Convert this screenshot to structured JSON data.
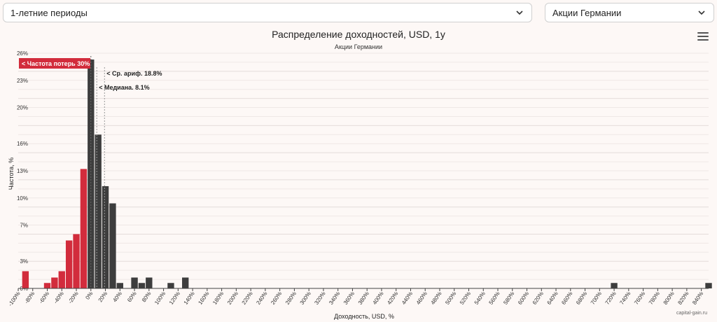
{
  "controls": {
    "period_select": "1-летние периоды",
    "market_select": "Акции Германии"
  },
  "credit": "capital-gain.ru",
  "icons": {
    "menu": "hamburger-menu-icon",
    "chevron": "chevron-down-icon"
  },
  "colors": {
    "loss": "#d22c3c",
    "gain": "#3d3d3d",
    "marker": "#999999"
  },
  "chart_data": {
    "type": "bar",
    "title": "Распределение доходностей, USD, 1y",
    "subtitle": "Акции Германии",
    "xlabel": "Доходность, USD, %",
    "ylabel": "Частота, %",
    "xlim": [
      -100,
      850
    ],
    "ylim": [
      0,
      26
    ],
    "bin_width": 10,
    "y_ticks": [
      "0%",
      "3%",
      "7%",
      "10%",
      "13%",
      "16%",
      "20%",
      "23%",
      "26%"
    ],
    "x_ticks": [
      "-100%",
      "-80%",
      "-60%",
      "-40%",
      "-20%",
      "0%",
      "20%",
      "40%",
      "60%",
      "80%",
      "100%",
      "120%",
      "140%",
      "160%",
      "180%",
      "200%",
      "220%",
      "240%",
      "260%",
      "280%",
      "300%",
      "320%",
      "340%",
      "360%",
      "380%",
      "400%",
      "420%",
      "440%",
      "460%",
      "480%",
      "500%",
      "520%",
      "540%",
      "560%",
      "580%",
      "600%",
      "620%",
      "640%",
      "660%",
      "680%",
      "700%",
      "720%",
      "740%",
      "760%",
      "780%",
      "800%",
      "820%",
      "840%"
    ],
    "bins": [
      {
        "x": -90,
        "y": 1.9,
        "loss": true
      },
      {
        "x": -60,
        "y": 0.6,
        "loss": true
      },
      {
        "x": -50,
        "y": 1.2,
        "loss": true
      },
      {
        "x": -40,
        "y": 1.9,
        "loss": true
      },
      {
        "x": -30,
        "y": 5.3,
        "loss": true
      },
      {
        "x": -20,
        "y": 6.0,
        "loss": true
      },
      {
        "x": -10,
        "y": 13.2,
        "loss": true
      },
      {
        "x": 0,
        "y": 25.3,
        "loss": false
      },
      {
        "x": 10,
        "y": 17.0,
        "loss": false
      },
      {
        "x": 20,
        "y": 11.3,
        "loss": false
      },
      {
        "x": 30,
        "y": 9.4,
        "loss": false
      },
      {
        "x": 40,
        "y": 0.6,
        "loss": false
      },
      {
        "x": 60,
        "y": 1.2,
        "loss": false
      },
      {
        "x": 70,
        "y": 0.6,
        "loss": false
      },
      {
        "x": 80,
        "y": 1.2,
        "loss": false
      },
      {
        "x": 110,
        "y": 0.6,
        "loss": false
      },
      {
        "x": 130,
        "y": 1.2,
        "loss": false
      },
      {
        "x": 720,
        "y": 0.6,
        "loss": false
      },
      {
        "x": 850,
        "y": 0.6,
        "loss": false
      }
    ],
    "annotations": {
      "loss_frequency": "< Частота потерь 30%",
      "mean": {
        "label": "< Ср. ариф. 18.8%",
        "x": 18.8
      },
      "median": {
        "label": "< Медиана. 8.1%",
        "x": 8.1
      }
    }
  }
}
